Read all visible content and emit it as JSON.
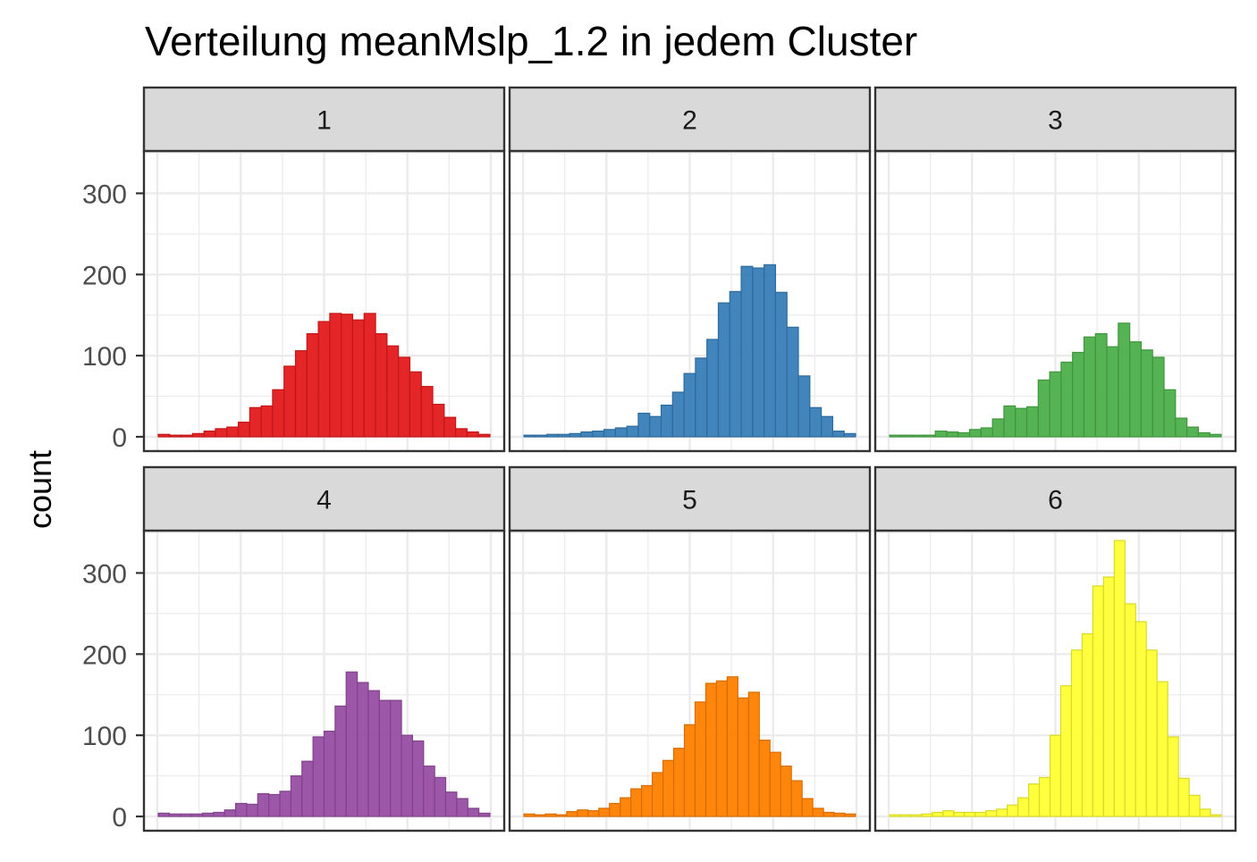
{
  "chart_data": {
    "type": "bar",
    "title": "Verteilung meanMslp_1.2 in jedem Cluster",
    "xlabel": "",
    "ylabel": "count",
    "ylim": [
      0,
      350
    ],
    "y_ticks": [
      "0",
      "100",
      "200",
      "300"
    ],
    "grid": true,
    "layout": "facet 2x3, shared y-axis",
    "panels": [
      {
        "label": "1",
        "color": "#E41A1C",
        "values": [
          3,
          2,
          2,
          4,
          7,
          10,
          12,
          18,
          36,
          38,
          58,
          87,
          106,
          127,
          142,
          152,
          151,
          144,
          152,
          127,
          112,
          98,
          80,
          62,
          40,
          24,
          10,
          6,
          3
        ]
      },
      {
        "label": "2",
        "color": "#377EB8",
        "values": [
          2,
          2,
          3,
          3,
          4,
          6,
          7,
          9,
          11,
          13,
          29,
          25,
          39,
          55,
          78,
          97,
          120,
          165,
          179,
          210,
          208,
          212,
          178,
          135,
          75,
          36,
          25,
          7,
          4
        ]
      },
      {
        "label": "3",
        "color": "#4DAF4A",
        "values": [
          2,
          2,
          2,
          2,
          7,
          6,
          5,
          9,
          11,
          22,
          38,
          35,
          37,
          70,
          80,
          92,
          104,
          123,
          127,
          111,
          140,
          117,
          107,
          98,
          58,
          23,
          12,
          5,
          3
        ]
      },
      {
        "label": "4",
        "color": "#984EA3",
        "values": [
          4,
          3,
          3,
          3,
          4,
          5,
          8,
          16,
          15,
          28,
          27,
          31,
          50,
          68,
          98,
          105,
          136,
          178,
          165,
          155,
          143,
          143,
          100,
          93,
          62,
          48,
          30,
          22,
          10,
          4
        ]
      },
      {
        "label": "5",
        "color": "#FF7F00",
        "values": [
          3,
          2,
          3,
          2,
          6,
          8,
          7,
          10,
          16,
          23,
          34,
          38,
          54,
          69,
          84,
          113,
          141,
          164,
          167,
          172,
          146,
          153,
          94,
          79,
          62,
          44,
          22,
          10,
          5,
          4,
          3
        ]
      },
      {
        "label": "6",
        "color": "#FFFF33",
        "values": [
          2,
          2,
          2,
          3,
          5,
          7,
          5,
          5,
          5,
          7,
          9,
          14,
          23,
          40,
          48,
          100,
          161,
          205,
          225,
          284,
          295,
          340,
          262,
          240,
          205,
          166,
          98,
          47,
          26,
          9,
          2
        ]
      }
    ]
  }
}
